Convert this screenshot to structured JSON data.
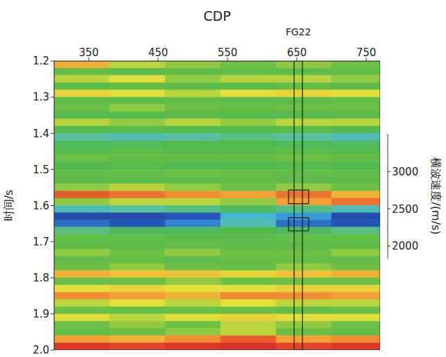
{
  "chart_data": {
    "type": "heatmap",
    "x_label": "CDP",
    "y_label": "时间/s",
    "xlim": [
      300,
      770
    ],
    "xticks": [
      350,
      450,
      550,
      650,
      750
    ],
    "ylim": [
      1.2,
      2.0
    ],
    "yticks": [
      1.2,
      1.3,
      1.4,
      1.5,
      1.6,
      1.7,
      1.8,
      1.9,
      {
        "value": 2,
        "label": "2.0"
      }
    ],
    "cells": {
      "x_edges": [
        300,
        380,
        460,
        540,
        620,
        700,
        770
      ],
      "y_edges": [
        1.2,
        1.22,
        1.24,
        1.26,
        1.28,
        1.3,
        1.32,
        1.34,
        1.36,
        1.38,
        1.4,
        1.42,
        1.44,
        1.46,
        1.48,
        1.5,
        1.52,
        1.54,
        1.56,
        1.58,
        1.6,
        1.62,
        1.64,
        1.66,
        1.68,
        1.7,
        1.72,
        1.74,
        1.76,
        1.78,
        1.8,
        1.82,
        1.84,
        1.86,
        1.88,
        1.9,
        1.92,
        1.94,
        1.96,
        1.98,
        2.0
      ],
      "values": [
        [
          3000,
          2800,
          2750,
          2700,
          2750,
          2700
        ],
        [
          2650,
          2600,
          2650,
          2650,
          2600,
          2650
        ],
        [
          2800,
          2850,
          2750,
          2800,
          2800,
          2750
        ],
        [
          2600,
          2650,
          2600,
          2600,
          2650,
          2600
        ],
        [
          2900,
          2850,
          2800,
          2850,
          2900,
          2850
        ],
        [
          2600,
          2600,
          2650,
          2600,
          2600,
          2650
        ],
        [
          2700,
          2750,
          2700,
          2650,
          2700,
          2700
        ],
        [
          2550,
          2550,
          2600,
          2550,
          2550,
          2600
        ],
        [
          2800,
          2750,
          2800,
          2750,
          2800,
          2800
        ],
        [
          2550,
          2600,
          2550,
          2550,
          2600,
          2550
        ],
        [
          2350,
          2300,
          2350,
          2400,
          2350,
          2300
        ],
        [
          2450,
          2450,
          2500,
          2500,
          2450,
          2450
        ],
        [
          2550,
          2600,
          2550,
          2550,
          2600,
          2550
        ],
        [
          2700,
          2650,
          2650,
          2650,
          2700,
          2650
        ],
        [
          2500,
          2550,
          2500,
          2500,
          2550,
          2500
        ],
        [
          2650,
          2650,
          2700,
          2650,
          2650,
          2650
        ],
        [
          2600,
          2600,
          2600,
          2650,
          2600,
          2600
        ],
        [
          2750,
          2800,
          2750,
          2700,
          2750,
          2700
        ],
        [
          3200,
          3150,
          3100,
          3050,
          3150,
          3000
        ],
        [
          2750,
          2800,
          2800,
          2750,
          3050,
          3150
        ],
        [
          2300,
          2350,
          2400,
          2450,
          2400,
          2300
        ],
        [
          1950,
          1950,
          2000,
          2250,
          2150,
          1950
        ],
        [
          2050,
          2000,
          2100,
          2300,
          2050,
          2000
        ],
        [
          2400,
          2450,
          2450,
          2500,
          2450,
          2400
        ],
        [
          2650,
          2650,
          2600,
          2600,
          2650,
          2650
        ],
        [
          2600,
          2600,
          2650,
          2600,
          2600,
          2600
        ],
        [
          2750,
          2700,
          2750,
          2700,
          2700,
          2750
        ],
        [
          2650,
          2650,
          2600,
          2650,
          2650,
          2650
        ],
        [
          2700,
          2750,
          2700,
          2650,
          2750,
          2700
        ],
        [
          3000,
          2950,
          2950,
          2900,
          2950,
          3000
        ],
        [
          2700,
          2700,
          2750,
          2700,
          2700,
          2700
        ],
        [
          2850,
          2900,
          2850,
          2850,
          2900,
          2900
        ],
        [
          3100,
          3050,
          3000,
          3100,
          3100,
          3050
        ],
        [
          2800,
          2850,
          2800,
          2850,
          2800,
          2800
        ],
        [
          2700,
          2650,
          2700,
          2700,
          2650,
          2700
        ],
        [
          2850,
          2800,
          2850,
          2900,
          2850,
          2850
        ],
        [
          2700,
          2750,
          2700,
          2800,
          2750,
          2700
        ],
        [
          2650,
          2700,
          2750,
          2800,
          2700,
          2650
        ],
        [
          3050,
          3000,
          3100,
          3200,
          3050,
          3100
        ],
        [
          3300,
          3250,
          3300,
          3350,
          3250,
          3300
        ]
      ]
    },
    "colorbar": {
      "label": "横波速度/(m/s)",
      "range": [
        1830,
        3510
      ],
      "ticks": [
        2000,
        2500,
        3000
      ]
    },
    "annotations": [
      {
        "label": "FG22",
        "cdp": [
          646,
          658
        ],
        "time": [
          1.2,
          2.0
        ]
      },
      {
        "cdp": [
          638,
          667
        ],
        "time": [
          1.557,
          1.595
        ]
      },
      {
        "cdp": [
          638,
          667
        ],
        "time": [
          1.634,
          1.67
        ]
      }
    ]
  }
}
